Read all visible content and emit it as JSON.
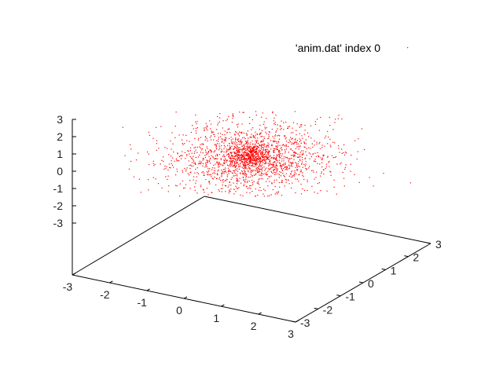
{
  "chart_data": {
    "type": "scatter",
    "projection": "3d",
    "title": "",
    "xlabel": "",
    "ylabel": "",
    "zlabel": "",
    "xlim": [
      -3,
      3
    ],
    "ylim": [
      -3,
      3
    ],
    "zlim": [
      -3,
      3
    ],
    "x_ticks": [
      "-3",
      "-2",
      "-1",
      "0",
      "1",
      "2",
      "3"
    ],
    "y_ticks": [
      "-3",
      "-2",
      "-1",
      "0",
      "1",
      "2",
      "3"
    ],
    "z_ticks": [
      "3",
      "2",
      "1",
      "0",
      "-1",
      "-2",
      "-3"
    ],
    "grid": false,
    "legend_position": "top-right",
    "point_color": "#ff0000",
    "series": [
      {
        "name": "'anim.dat' index 0",
        "distribution": "random scatter, densest near x=0, y=0",
        "points": [
          [
            0.2,
            0.1,
            1.4
          ],
          [
            -0.5,
            0.3,
            0.9
          ],
          [
            0.8,
            -0.4,
            1.1
          ],
          [
            -1.2,
            0.6,
            1.6
          ],
          [
            1.5,
            0.2,
            0.7
          ],
          [
            -0.3,
            -1.1,
            1.2
          ],
          [
            0.4,
            1.3,
            1.0
          ],
          [
            -1.7,
            -0.5,
            0.8
          ],
          [
            1.1,
            1.0,
            1.8
          ],
          [
            -0.9,
            1.6,
            0.6
          ],
          [
            2.0,
            -0.8,
            1.0
          ],
          [
            -2.1,
            0.9,
            1.3
          ],
          [
            0.0,
            0.0,
            1.5
          ],
          [
            0.6,
            0.5,
            0.8
          ],
          [
            -0.7,
            -0.6,
            1.3
          ]
        ]
      }
    ]
  }
}
